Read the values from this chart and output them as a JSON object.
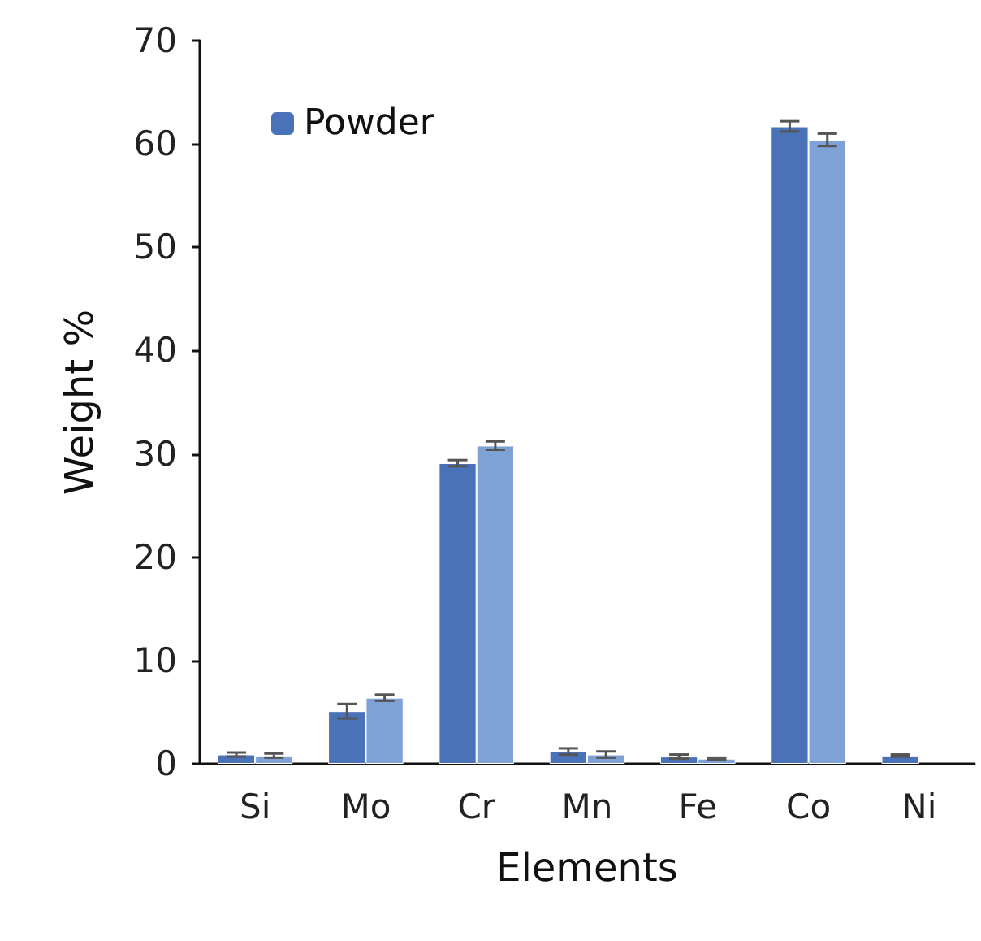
{
  "chart_data": {
    "type": "bar",
    "xlabel": "Elements",
    "ylabel": "Weight %",
    "categories": [
      "Si",
      "Mo",
      "Cr",
      "Mn",
      "Fe",
      "Co",
      "Ni"
    ],
    "series": [
      {
        "name": "Powder",
        "color": "#4a72b8",
        "values": [
          0.9,
          5.1,
          29.1,
          1.2,
          0.7,
          61.7,
          0.8
        ],
        "errors": [
          0.2,
          0.7,
          0.3,
          0.3,
          0.2,
          0.5,
          0.1
        ]
      },
      {
        "color": "#7fa2d6",
        "values": [
          0.8,
          6.4,
          30.8,
          0.9,
          0.5,
          60.4,
          null
        ],
        "errors": [
          0.2,
          0.3,
          0.4,
          0.3,
          0.1,
          0.6,
          null
        ]
      }
    ],
    "ylim": [
      0,
      70
    ],
    "yticks": [
      0,
      10,
      20,
      30,
      40,
      50,
      60,
      70
    ],
    "grid": false,
    "legend": "top left"
  }
}
